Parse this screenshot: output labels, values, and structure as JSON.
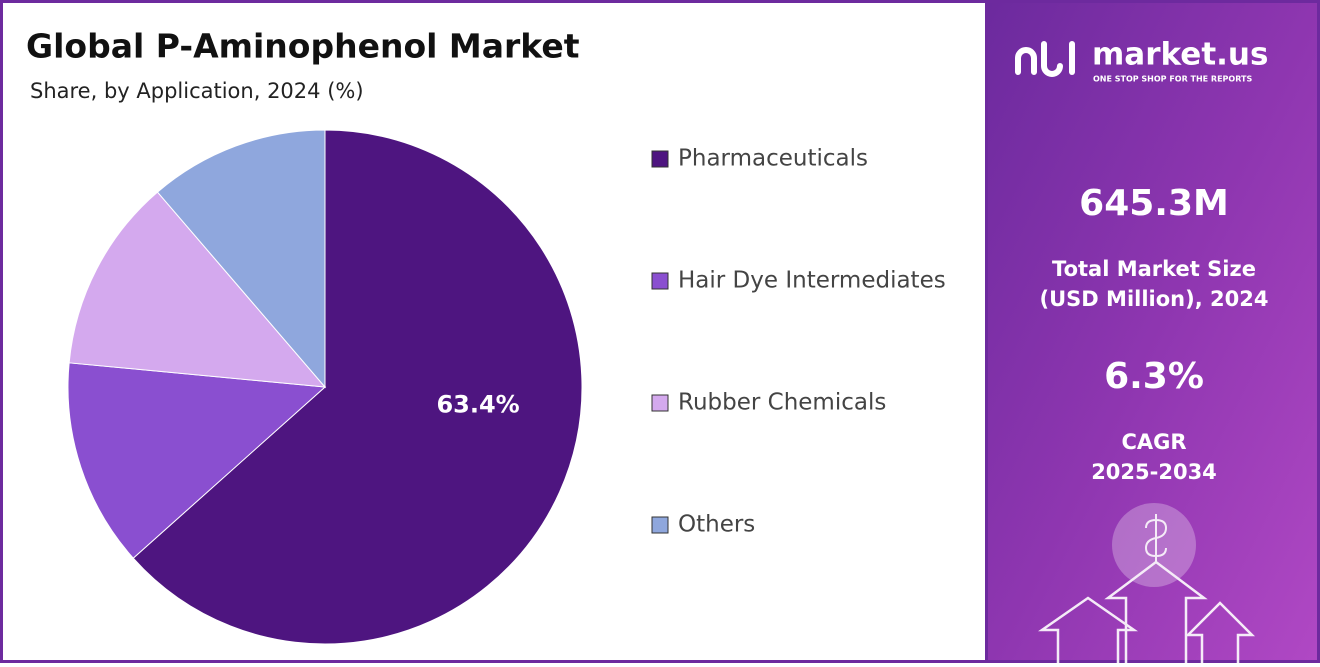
{
  "chart_data": {
    "type": "pie",
    "title": "Global P-Aminophenol Market",
    "subtitle": "Share, by Application, 2024 (%)",
    "categories": [
      "Pharmaceuticals",
      "Hair Dye Intermediates",
      "Rubber Chemicals",
      "Others"
    ],
    "values": [
      63.4,
      13.1,
      12.2,
      11.3
    ],
    "value_labels": [
      "63.4%",
      null,
      null,
      null
    ],
    "colors": [
      "#4e1580",
      "#8a4fd0",
      "#d4a9ee",
      "#8fa7dd"
    ],
    "legend": "right"
  },
  "sidebar": {
    "brand": "market.us",
    "tagline": "ONE STOP SHOP FOR THE REPORTS",
    "market_size": "645.3M",
    "market_size_label": [
      "Total Market Size",
      "(USD Million), 2024"
    ],
    "cagr": "6.3%",
    "cagr_label": [
      "CAGR",
      "2025-2034"
    ]
  }
}
